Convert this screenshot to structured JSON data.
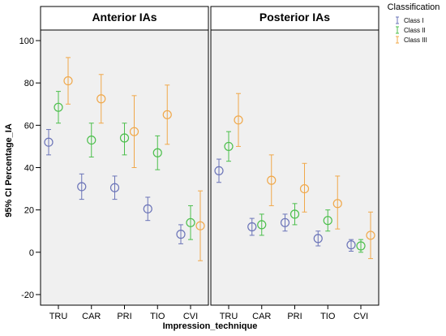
{
  "chart_data": {
    "type": "scatter",
    "ylabel": "95% CI Percentage_IA",
    "xlabel": "Impression_technique",
    "ylim": [
      -25,
      105
    ],
    "yticks": [
      -20,
      0,
      20,
      40,
      60,
      80,
      100
    ],
    "categories": [
      "TRU",
      "CAR",
      "PRI",
      "TIO",
      "CVI"
    ],
    "legend": {
      "title": "Classification",
      "placement": "top-right",
      "entries": [
        {
          "name": "Class I",
          "color": "#6b74b8"
        },
        {
          "name": "Class II",
          "color": "#4cbf4c"
        },
        {
          "name": "Class III",
          "color": "#f0a84a"
        }
      ]
    },
    "panels": [
      {
        "title": "Anterior IAs",
        "series": [
          {
            "name": "Class I",
            "mean": [
              52,
              31,
              30.5,
              20.5,
              8.5
            ],
            "lower": [
              46,
              25,
              25,
              15,
              4
            ],
            "upper": [
              58,
              37,
              36,
              26,
              13
            ]
          },
          {
            "name": "Class II",
            "mean": [
              68.5,
              53,
              54,
              47,
              14
            ],
            "lower": [
              61,
              45,
              46,
              39,
              6
            ],
            "upper": [
              76,
              61,
              61,
              55,
              22
            ]
          },
          {
            "name": "Class III",
            "mean": [
              81,
              72.5,
              57,
              65,
              12.5
            ],
            "lower": [
              70,
              61,
              40,
              51,
              -4
            ],
            "upper": [
              92,
              84,
              74,
              79,
              29
            ]
          }
        ]
      },
      {
        "title": "Posterior IAs",
        "series": [
          {
            "name": "Class I",
            "mean": [
              38.5,
              12,
              14,
              6.5,
              3.5
            ],
            "lower": [
              33,
              8,
              10,
              3,
              0.5
            ],
            "upper": [
              44,
              16,
              18,
              10,
              6
            ]
          },
          {
            "name": "Class II",
            "mean": [
              50,
              13,
              18,
              15,
              3
            ],
            "lower": [
              43,
              8,
              13,
              10,
              0
            ],
            "upper": [
              57,
              18,
              23,
              20,
              6
            ]
          },
          {
            "name": "Class III",
            "mean": [
              62.5,
              34,
              30,
              23,
              8
            ],
            "lower": [
              50,
              22,
              19,
              11,
              -3
            ],
            "upper": [
              75,
              46,
              42,
              36,
              19
            ]
          }
        ]
      }
    ]
  }
}
